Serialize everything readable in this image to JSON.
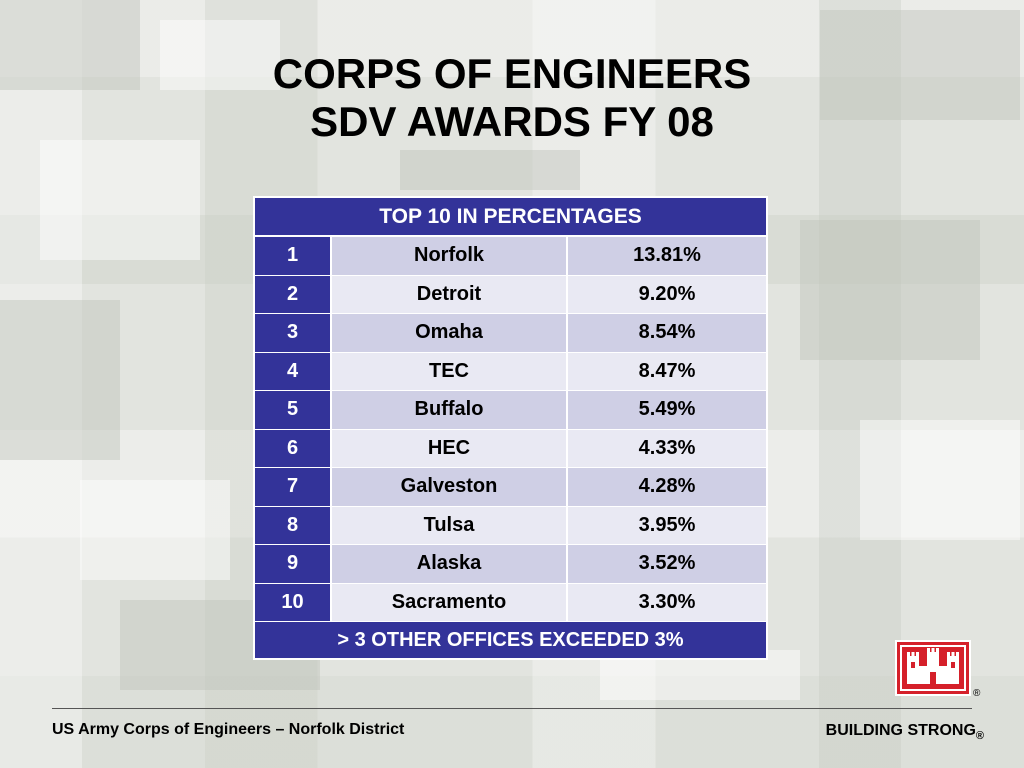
{
  "title": {
    "line1": "CORPS OF ENGINEERS",
    "line2": "SDV AWARDS FY 08"
  },
  "table": {
    "header": "TOP 10 IN PERCENTAGES",
    "rows": [
      {
        "rank": "1",
        "office": "Norfolk",
        "percent": "13.81%"
      },
      {
        "rank": "2",
        "office": "Detroit",
        "percent": "9.20%"
      },
      {
        "rank": "3",
        "office": "Omaha",
        "percent": "8.54%"
      },
      {
        "rank": "4",
        "office": "TEC",
        "percent": "8.47%"
      },
      {
        "rank": "5",
        "office": "Buffalo",
        "percent": "5.49%"
      },
      {
        "rank": "6",
        "office": "HEC",
        "percent": "4.33%"
      },
      {
        "rank": "7",
        "office": "Galveston",
        "percent": "4.28%"
      },
      {
        "rank": "8",
        "office": "Tulsa",
        "percent": "3.95%"
      },
      {
        "rank": "9",
        "office": "Alaska",
        "percent": "3.52%"
      },
      {
        "rank": "10",
        "office": "Sacramento",
        "percent": "3.30%"
      }
    ],
    "footer": "> 3 OTHER OFFICES EXCEEDED 3%"
  },
  "footer": {
    "left": "US Army Corps of Engineers – Norfolk District",
    "right": "BUILDING STRONG",
    "right_mark": "®"
  },
  "logo": {
    "icon": "castle-icon",
    "mark": "®",
    "color": "#d5202a"
  },
  "colors": {
    "table_header": "#333399",
    "row_odd": "#cfcfe5",
    "row_even": "#e9e9f3"
  }
}
